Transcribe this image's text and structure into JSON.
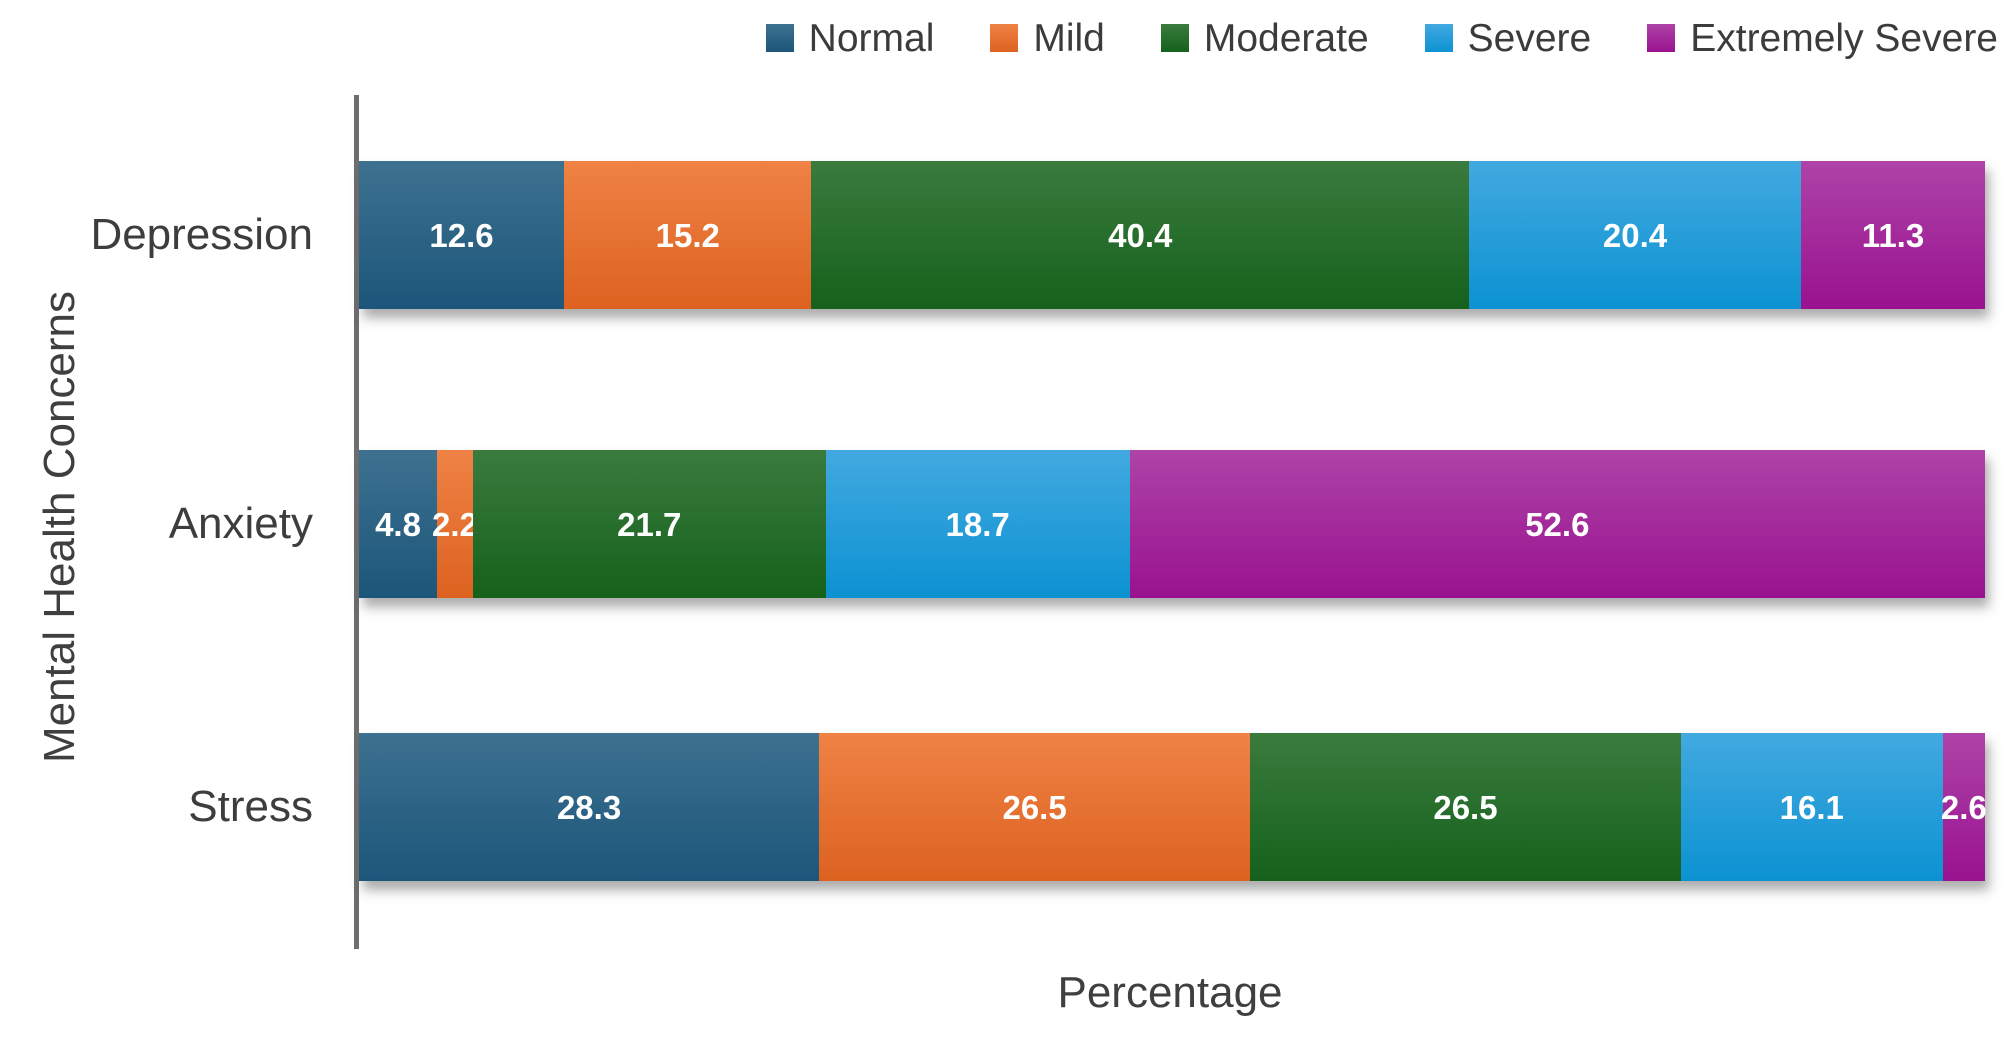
{
  "chart_data": {
    "type": "bar",
    "subtype": "horizontal-100-percent-stacked",
    "title": "",
    "xlabel": "Percentage",
    "ylabel": "Mental Health Concerns",
    "categories": [
      "Depression",
      "Anxiety",
      "Stress"
    ],
    "series": [
      {
        "name": "Normal",
        "color": "#20618c",
        "color_top": "#3d7190",
        "color_bottom": "#1c567a",
        "values": [
          12.6,
          4.8,
          28.3
        ]
      },
      {
        "name": "Mild",
        "color": "#e8712f",
        "color_top": "#ef8245",
        "color_bottom": "#dd6220",
        "values": [
          15.2,
          2.2,
          26.5
        ]
      },
      {
        "name": "Moderate",
        "color": "#26702b",
        "color_top": "#3a7b3e",
        "color_bottom": "#15611b",
        "values": [
          40.4,
          21.7,
          26.5
        ]
      },
      {
        "name": "Severe",
        "color": "#2aa0db",
        "color_top": "#42a9e0",
        "color_bottom": "#0c92d2",
        "values": [
          20.4,
          18.7,
          16.1
        ]
      },
      {
        "name": "Extremely Severe",
        "color": "#a5309f",
        "color_top": "#ae43a8",
        "color_bottom": "#99128f",
        "values": [
          11.3,
          52.6,
          2.6
        ]
      }
    ],
    "value_labels_shown": true,
    "value_label_decimals": 1,
    "legend_position": "top",
    "grid": false,
    "axis_line_color": "#6e6e6e",
    "text_color": "#3d3d3d",
    "value_label_color": "#ffffff",
    "xlim_percent": [
      0,
      100
    ]
  }
}
